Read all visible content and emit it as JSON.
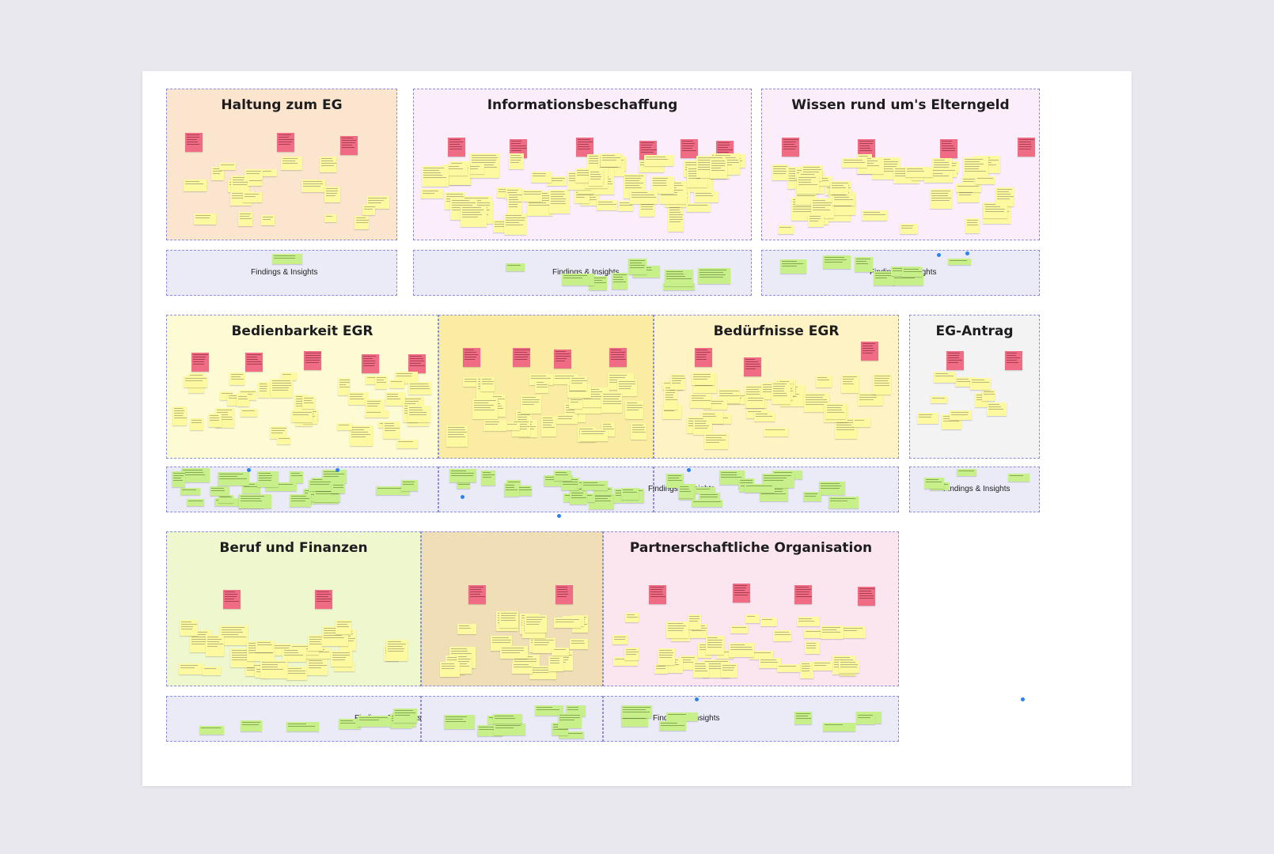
{
  "board": {
    "sections": {
      "haltung": {
        "title": "Haltung zum EG"
      },
      "informationsbeschaffung": {
        "title": "Informationsbeschaffung"
      },
      "wissen": {
        "title": "Wissen rund um's Elterngeld"
      },
      "bedienbarkeit": {
        "title": "Bedienbarkeit EGR"
      },
      "beduerfnisse": {
        "title": "Bedürfnisse EGR"
      },
      "antrag": {
        "title": "EG-Antrag"
      },
      "beruf": {
        "title": "Beruf und Finanzen"
      },
      "partnerschaft": {
        "title": "Partnerschaftliche Organisation"
      }
    },
    "findings_label": "Findings & Insights",
    "colors": {
      "problem_sticky": "#f06c84",
      "quote_sticky": "#fdf9a0",
      "insight_sticky": "#c7f08a",
      "frame_border": "#8a8fd8",
      "findings_band": "#ebebf8"
    }
  }
}
